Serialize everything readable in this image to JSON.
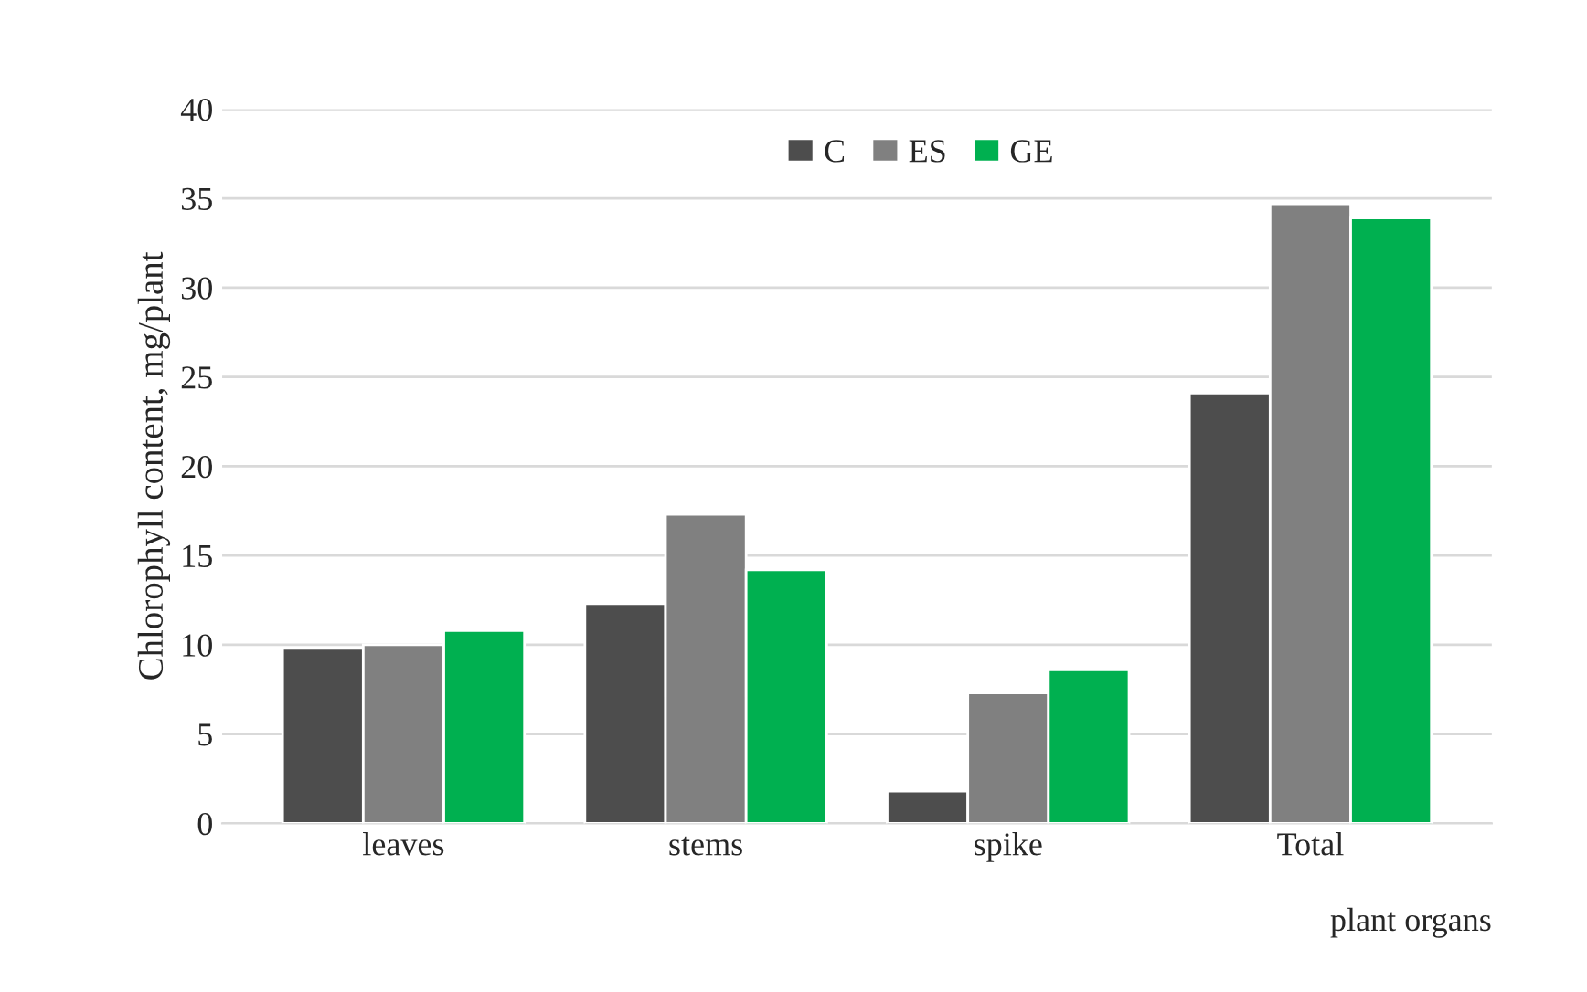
{
  "chart_data": {
    "type": "bar",
    "xlabel": "plant organs",
    "ylabel": "Chlorophyll content, mg/plant",
    "categories": [
      "leaves",
      "stems",
      "spike",
      "Total"
    ],
    "series": [
      {
        "name": "C",
        "color": "#4d4d4d",
        "values": [
          9.8,
          12.3,
          1.8,
          24.1
        ]
      },
      {
        "name": "ES",
        "color": "#808080",
        "values": [
          10.0,
          17.3,
          7.3,
          34.7
        ]
      },
      {
        "name": "GE",
        "color": "#00b050",
        "values": [
          10.8,
          14.2,
          8.6,
          33.9
        ]
      }
    ],
    "ylim": [
      0,
      40
    ],
    "yticks": [
      0,
      5,
      10,
      15,
      20,
      25,
      30,
      35,
      40
    ],
    "grid": "y",
    "legend": "top"
  }
}
